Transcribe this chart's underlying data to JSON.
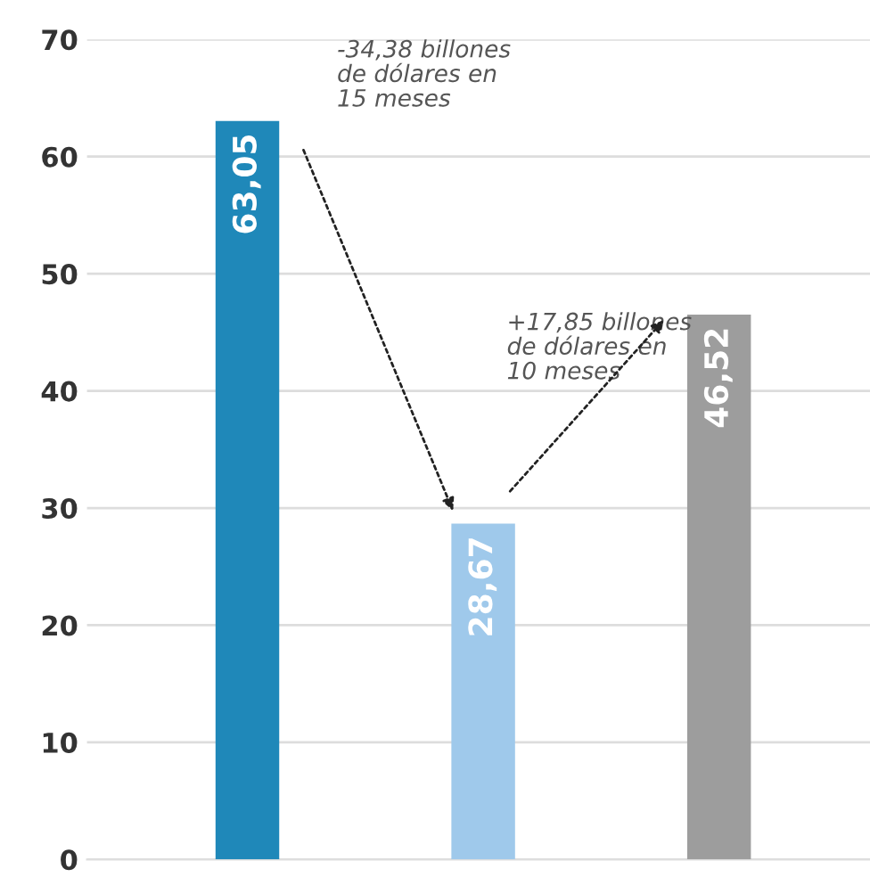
{
  "chart_data": {
    "type": "bar",
    "categories": [
      null,
      null,
      null
    ],
    "values": [
      63.05,
      28.67,
      46.52
    ],
    "colors": [
      "#1f88b9",
      "#9fc9eb",
      "#9d9d9d"
    ],
    "value_labels": [
      "63,05",
      "28,67",
      "46,52"
    ],
    "ylim": [
      0,
      70
    ],
    "yticks": [
      0,
      10,
      20,
      30,
      40,
      50,
      60,
      70
    ],
    "grid": "y",
    "annotations": [
      "-34,38 billones\nde dólares en\n15 meses",
      "+17,85 billones\nde dólares en\n10 meses"
    ]
  }
}
